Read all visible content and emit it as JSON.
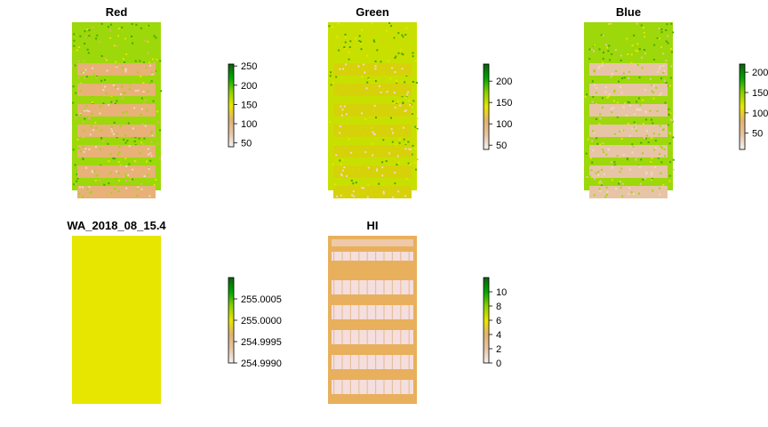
{
  "chart_data": [
    {
      "type": "heatmap",
      "title": "Red",
      "legend": {
        "ticks": [
          50,
          100,
          150,
          200,
          250
        ],
        "tick_labels": [
          "50",
          "100",
          "150",
          "200",
          "250"
        ],
        "range": [
          40,
          255
        ]
      },
      "palette": "terrain",
      "pattern": "plots"
    },
    {
      "type": "heatmap",
      "title": "Green",
      "legend": {
        "ticks": [
          50,
          100,
          150,
          200
        ],
        "tick_labels": [
          "50",
          "100",
          "150",
          "200"
        ],
        "range": [
          40,
          240
        ]
      },
      "palette": "terrain",
      "pattern": "plots"
    },
    {
      "type": "heatmap",
      "title": "Blue",
      "legend": {
        "ticks": [
          50,
          100,
          150,
          200
        ],
        "tick_labels": [
          "50",
          "100",
          "150",
          "200"
        ],
        "range": [
          10,
          220
        ]
      },
      "palette": "terrain",
      "pattern": "plots"
    },
    {
      "type": "heatmap",
      "title": "WA_2018_08_15.4",
      "legend": {
        "ticks": [
          254.999,
          254.9995,
          255.0,
          255.0005
        ],
        "tick_labels": [
          "254.9990",
          "254.9995",
          "255.0000",
          "255.0005"
        ],
        "range": [
          254.999,
          255.001
        ]
      },
      "palette": "terrain",
      "pattern": "uniform"
    },
    {
      "type": "heatmap",
      "title": "HI",
      "legend": {
        "ticks": [
          0,
          2,
          4,
          6,
          8,
          10
        ],
        "tick_labels": [
          "0",
          "2",
          "4",
          "6",
          "8",
          "10"
        ],
        "range": [
          0,
          12
        ]
      },
      "palette": "terrain",
      "pattern": "hi"
    }
  ],
  "colors": {
    "palette_stops": [
      "#f2f2f2",
      "#e6c4a5",
      "#e2b270",
      "#e6e600",
      "#8bd000",
      "#00a600",
      "#0f5e0f"
    ],
    "uniform_fill": "#e6e600",
    "hi_background": "#e8b05c",
    "hi_rows": "#f4dede",
    "plot_base_red": "#e7b177",
    "plot_base_green": "#d7d10a",
    "plot_base_blue": "#e8c4a6"
  }
}
